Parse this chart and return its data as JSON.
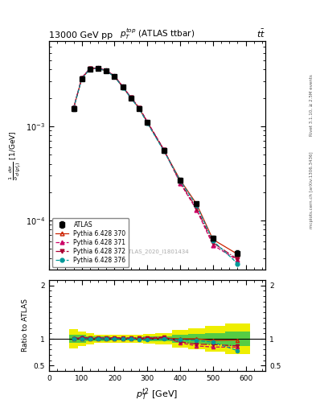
{
  "title_top": "13000 GeV pp",
  "title_right": "tt̅",
  "panel_title": "$p_T^{top}$ (ATLAS t$\\bar{t}$bar)",
  "xlabel": "$p_T^{t2}$ [GeV]",
  "ylabel_ratio": "Ratio to ATLAS",
  "watermark": "ATLAS_2020_I1801434",
  "rivet_text": "Rivet 3.1.10, ≥ 2.5M events",
  "mcplots_text": "mcplots.cern.ch [arXiv:1306.3436]",
  "pt_vals": [
    75,
    100,
    125,
    150,
    175,
    200,
    225,
    250,
    275,
    300,
    350,
    400,
    450,
    500,
    575
  ],
  "atlas_y": [
    0.00155,
    0.0032,
    0.00405,
    0.0041,
    0.00385,
    0.00335,
    0.0026,
    0.002,
    0.00155,
    0.0011,
    0.00055,
    0.00027,
    0.00015,
    6.5e-05,
    4.5e-05
  ],
  "atlas_yerr": [
    0.0001,
    0.00012,
    0.00012,
    0.00012,
    0.0001,
    9e-05,
    8e-05,
    7e-05,
    6e-05,
    5e-05,
    2.5e-05,
    1.2e-05,
    8e-06,
    4e-06,
    3e-06
  ],
  "py370_y": [
    0.00155,
    0.00322,
    0.00408,
    0.00412,
    0.00387,
    0.00337,
    0.00261,
    0.002,
    0.00155,
    0.0011,
    0.000558,
    0.00027,
    0.00015,
    6.3e-05,
    4.4e-05
  ],
  "py371_y": [
    0.00157,
    0.00328,
    0.00412,
    0.00418,
    0.00392,
    0.00342,
    0.00265,
    0.00203,
    0.00158,
    0.00112,
    0.00057,
    0.00025,
    0.00013,
    5.5e-05,
    3.8e-05
  ],
  "py372_y": [
    0.00156,
    0.00325,
    0.0041,
    0.00415,
    0.0039,
    0.0034,
    0.00263,
    0.00202,
    0.00157,
    0.00111,
    0.000565,
    0.000255,
    0.000135,
    5.8e-05,
    3.9e-05
  ],
  "py376_y": [
    0.00155,
    0.0032,
    0.00406,
    0.0041,
    0.00386,
    0.00335,
    0.00259,
    0.00199,
    0.00153,
    0.00108,
    0.00055,
    0.000265,
    0.000145,
    6.1e-05,
    3.5e-05
  ],
  "ratio_atlas_green": [
    0.08,
    0.07,
    0.05,
    0.04,
    0.04,
    0.03,
    0.03,
    0.03,
    0.03,
    0.04,
    0.05,
    0.07,
    0.09,
    0.11,
    0.14
  ],
  "ratio_atlas_yellow": [
    0.18,
    0.14,
    0.1,
    0.08,
    0.08,
    0.07,
    0.07,
    0.07,
    0.07,
    0.09,
    0.11,
    0.16,
    0.2,
    0.24,
    0.28
  ],
  "ratio370": [
    1.0,
    1.006,
    1.007,
    1.005,
    1.005,
    1.006,
    1.004,
    1.0,
    1.0,
    1.0,
    1.015,
    1.0,
    1.0,
    0.969,
    0.978
  ],
  "ratio371": [
    1.013,
    1.025,
    1.017,
    1.02,
    1.018,
    1.021,
    1.019,
    1.015,
    1.019,
    1.018,
    1.036,
    0.926,
    0.867,
    0.846,
    0.844
  ],
  "ratio372": [
    1.006,
    1.016,
    1.012,
    1.012,
    1.013,
    1.015,
    1.012,
    1.01,
    1.013,
    1.009,
    1.027,
    0.944,
    0.9,
    0.892,
    0.867
  ],
  "ratio376": [
    1.0,
    1.0,
    1.002,
    1.0,
    1.003,
    1.0,
    0.996,
    0.995,
    0.987,
    0.982,
    1.0,
    0.981,
    0.967,
    0.938,
    0.778
  ],
  "color_atlas": "#000000",
  "color_370": "#cc2200",
  "color_371": "#cc0066",
  "color_372": "#aa0033",
  "color_376": "#009999",
  "color_green": "#55cc44",
  "color_yellow": "#eeee00",
  "xlim": [
    0,
    660
  ],
  "ylim_main": [
    3e-05,
    0.008
  ],
  "ylim_ratio": [
    0.4,
    2.1
  ]
}
